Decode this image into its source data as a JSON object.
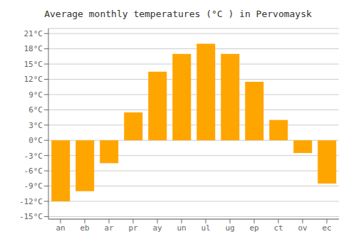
{
  "chart_data": {
    "type": "bar",
    "title": "Average monthly temperatures (°C ) in Pervomaysk",
    "categories": [
      "an",
      "eb",
      "ar",
      "pr",
      "ay",
      "un",
      "ul",
      "ug",
      "ep",
      "ct",
      "ov",
      "ec"
    ],
    "values": [
      -12,
      -10,
      -4.5,
      5.5,
      13.5,
      17,
      19,
      17,
      11.5,
      4,
      -2.5,
      -8.5
    ],
    "color": "#FFA500",
    "ylim": [
      -15.5,
      22
    ],
    "yticks": [
      {
        "value": -15,
        "label": "-15°C"
      },
      {
        "value": -12,
        "label": "-12°C"
      },
      {
        "value": -9,
        "label": "-9°C"
      },
      {
        "value": -6,
        "label": "-6°C"
      },
      {
        "value": -3,
        "label": "-3°C"
      },
      {
        "value": 0,
        "label": "0°C"
      },
      {
        "value": 3,
        "label": "3°C"
      },
      {
        "value": 6,
        "label": "6°C"
      },
      {
        "value": 9,
        "label": "9°C"
      },
      {
        "value": 12,
        "label": "12°C"
      },
      {
        "value": 15,
        "label": "15°C"
      },
      {
        "value": 18,
        "label": "18°C"
      },
      {
        "value": 21,
        "label": "21°C"
      }
    ],
    "grid": true
  }
}
